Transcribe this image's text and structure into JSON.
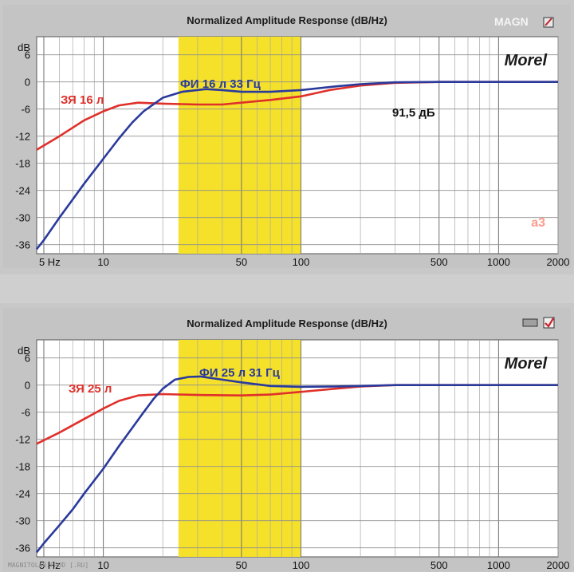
{
  "magazine_logo": "MAGN",
  "footer_text": "MAGNITOLAB.PROD [.RU]",
  "chart_data": [
    {
      "type": "line",
      "title": "Normalized Amplitude Response (dB/Hz)",
      "brand": "Morel",
      "watermark": "a3",
      "x_scale": "log",
      "xlim": [
        4.6,
        2000
      ],
      "ylim": [
        -38,
        10
      ],
      "x_ticks": [
        5,
        10,
        50,
        100,
        500,
        1000,
        2000
      ],
      "x_tick_labels": [
        "5 Hz",
        "10",
        "50",
        "100",
        "500",
        "1000",
        "2000"
      ],
      "y_ticks": [
        6,
        0,
        -6,
        -12,
        -18,
        -24,
        -30,
        -36
      ],
      "y_tick_labels": [
        "6",
        "0",
        "-6",
        "-12",
        "-18",
        "-24",
        "-30",
        "-36"
      ],
      "y_unit_label": "dB",
      "highlight_band": [
        24,
        100
      ],
      "highlight_color": "#f5e12a",
      "annotation": "91,5 дБ",
      "series": [
        {
          "name": "ЗЯ 16 л",
          "color": "#e0302a",
          "points": [
            [
              4.6,
              -15
            ],
            [
              6,
              -12
            ],
            [
              8,
              -8.5
            ],
            [
              10,
              -6.5
            ],
            [
              12,
              -5.2
            ],
            [
              15,
              -4.6
            ],
            [
              20,
              -4.8
            ],
            [
              30,
              -5
            ],
            [
              40,
              -5
            ],
            [
              50,
              -4.6
            ],
            [
              70,
              -4
            ],
            [
              100,
              -3.2
            ],
            [
              140,
              -1.8
            ],
            [
              200,
              -0.8
            ],
            [
              300,
              -0.2
            ],
            [
              500,
              0
            ],
            [
              2000,
              0
            ]
          ]
        },
        {
          "name": "ФИ 16 л 33 Гц",
          "color": "#2a3a9c",
          "points": [
            [
              4.6,
              -37
            ],
            [
              5,
              -35
            ],
            [
              6,
              -30
            ],
            [
              7,
              -26
            ],
            [
              8,
              -22.5
            ],
            [
              10,
              -17
            ],
            [
              12,
              -12.5
            ],
            [
              14,
              -9
            ],
            [
              16,
              -6.5
            ],
            [
              20,
              -3.5
            ],
            [
              25,
              -2.2
            ],
            [
              33,
              -1.6
            ],
            [
              40,
              -1.8
            ],
            [
              50,
              -2.2
            ],
            [
              70,
              -2.2
            ],
            [
              100,
              -1.8
            ],
            [
              150,
              -1
            ],
            [
              200,
              -0.5
            ],
            [
              300,
              -0.1
            ],
            [
              500,
              0
            ],
            [
              2000,
              0
            ]
          ]
        }
      ]
    },
    {
      "type": "line",
      "title": "Normalized Amplitude Response (dB/Hz)",
      "brand": "Morel",
      "x_scale": "log",
      "xlim": [
        4.6,
        2000
      ],
      "ylim": [
        -38,
        10
      ],
      "x_ticks": [
        5,
        10,
        50,
        100,
        500,
        1000,
        2000
      ],
      "x_tick_labels": [
        "5 Hz",
        "10",
        "50",
        "100",
        "500",
        "1000",
        "2000"
      ],
      "y_ticks": [
        6,
        0,
        -6,
        -12,
        -18,
        -24,
        -30,
        -36
      ],
      "y_tick_labels": [
        "6",
        "0",
        "-6",
        "-12",
        "-18",
        "-24",
        "-30",
        "-36"
      ],
      "y_unit_label": "dB",
      "highlight_band": [
        24,
        100
      ],
      "highlight_color": "#f5e12a",
      "series": [
        {
          "name": "ЗЯ 25 л",
          "color": "#e0302a",
          "points": [
            [
              4.6,
              -13
            ],
            [
              6,
              -10.5
            ],
            [
              8,
              -7.5
            ],
            [
              10,
              -5.2
            ],
            [
              12,
              -3.5
            ],
            [
              15,
              -2.3
            ],
            [
              20,
              -2
            ],
            [
              30,
              -2.2
            ],
            [
              50,
              -2.3
            ],
            [
              70,
              -2.1
            ],
            [
              100,
              -1.5
            ],
            [
              150,
              -0.8
            ],
            [
              200,
              -0.3
            ],
            [
              300,
              0
            ],
            [
              2000,
              0
            ]
          ]
        },
        {
          "name": "ФИ 25 л 31 Гц",
          "color": "#2a3a9c",
          "points": [
            [
              4.6,
              -37
            ],
            [
              5,
              -35
            ],
            [
              6,
              -31
            ],
            [
              7,
              -27.5
            ],
            [
              8,
              -24
            ],
            [
              10,
              -18.5
            ],
            [
              12,
              -13.5
            ],
            [
              14,
              -9.5
            ],
            [
              16,
              -6
            ],
            [
              18,
              -3
            ],
            [
              20,
              -0.8
            ],
            [
              23,
              1.2
            ],
            [
              27,
              1.8
            ],
            [
              31,
              1.9
            ],
            [
              40,
              1.2
            ],
            [
              50,
              0.6
            ],
            [
              70,
              -0.2
            ],
            [
              100,
              -0.4
            ],
            [
              150,
              -0.3
            ],
            [
              200,
              -0.2
            ],
            [
              300,
              0
            ],
            [
              2000,
              0
            ]
          ]
        }
      ]
    }
  ]
}
